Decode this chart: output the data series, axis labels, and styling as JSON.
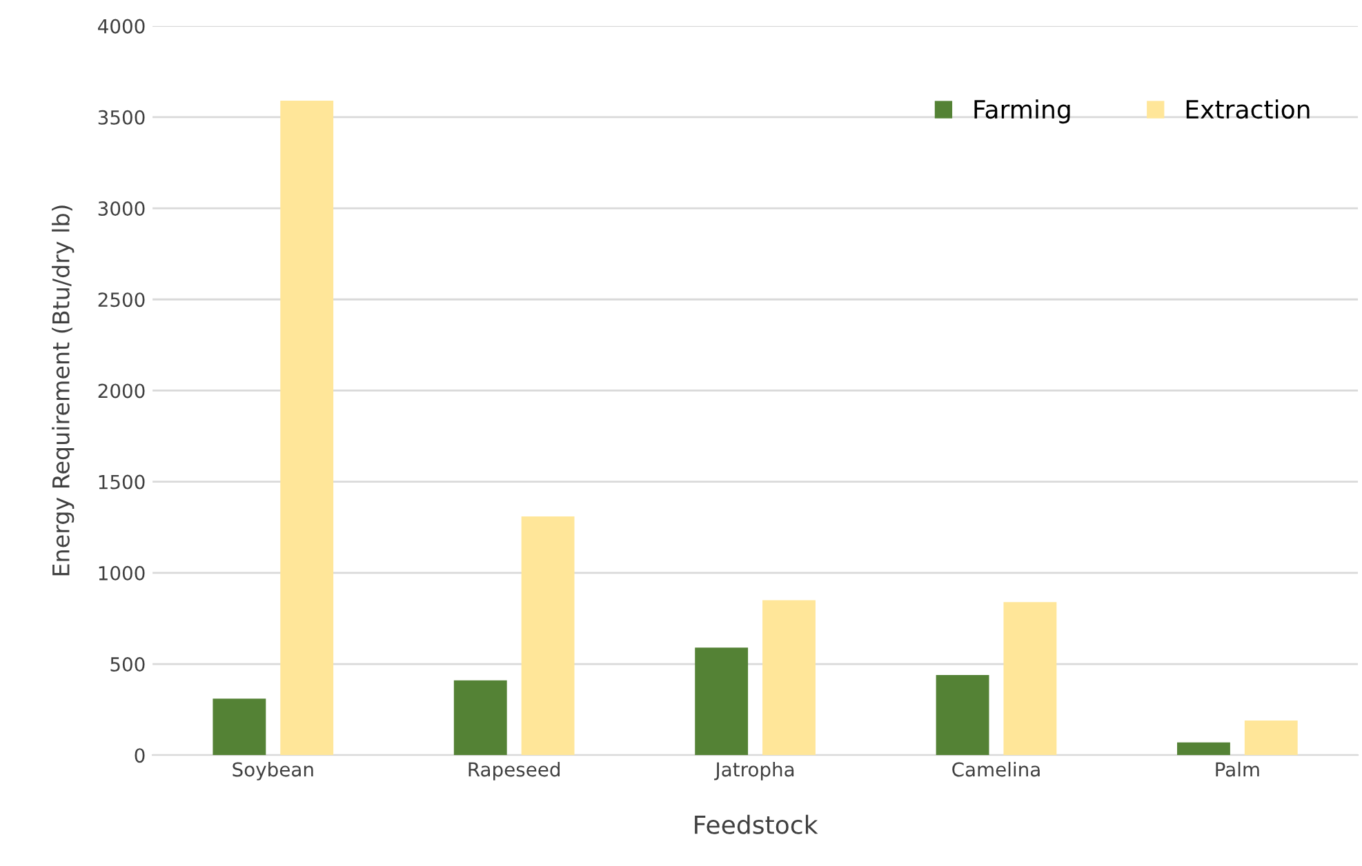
{
  "chart_data": {
    "type": "bar",
    "xlabel": "Feedstock",
    "ylabel": "Energy Requirement (Btu/dry lb)",
    "categories": [
      "Soybean",
      "Rapeseed",
      "Jatropha",
      "Camelina",
      "Palm"
    ],
    "series": [
      {
        "name": "Farming",
        "color": "#548235",
        "values": [
          310,
          410,
          590,
          440,
          70
        ]
      },
      {
        "name": "Extraction",
        "color": "#ffe699",
        "values": [
          3590,
          1310,
          850,
          840,
          190
        ]
      }
    ],
    "ylim": [
      0,
      4000
    ],
    "yticks": [
      0,
      500,
      1000,
      1500,
      2000,
      2500,
      3000,
      3500,
      4000
    ],
    "grid": "y",
    "legend": "top right"
  }
}
